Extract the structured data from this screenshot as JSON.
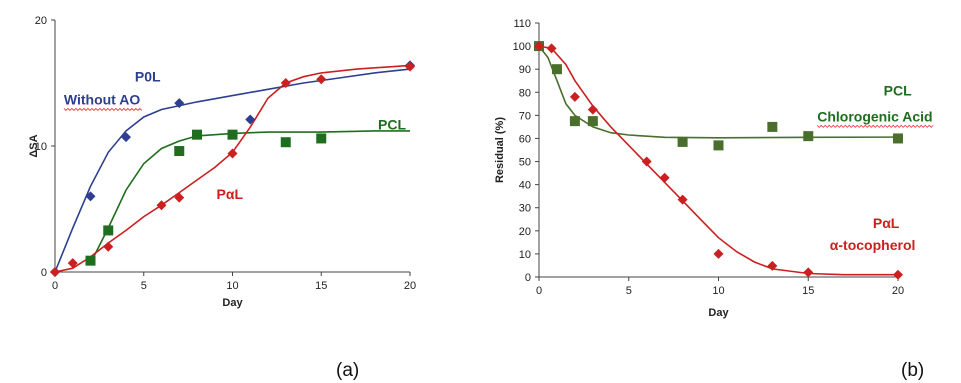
{
  "chart_data": [
    {
      "type": "scatter",
      "panel_label": "(a)",
      "xlabel": "Day",
      "ylabel": "ΔSA",
      "xlim": [
        0,
        20
      ],
      "ylim": [
        0,
        20
      ],
      "xticks": [
        "0",
        "5",
        "10",
        "15",
        "20"
      ],
      "yticks": [
        "0",
        "10",
        "20"
      ],
      "grid": false,
      "series": [
        {
          "name": "P0L",
          "color": "#2e3f8f",
          "marker": "diamond",
          "points": [
            [
              0,
              0
            ],
            [
              2,
              6
            ],
            [
              4,
              10.7
            ],
            [
              7,
              13.4
            ],
            [
              11,
              12.1
            ],
            [
              20,
              16.4
            ]
          ],
          "fit": [
            [
              0,
              0
            ],
            [
              1,
              3.5
            ],
            [
              2,
              6.8
            ],
            [
              3,
              9.5
            ],
            [
              4,
              11.2
            ],
            [
              5,
              12.3
            ],
            [
              6,
              12.9
            ],
            [
              8,
              13.5
            ],
            [
              10,
              14.0
            ],
            [
              12,
              14.5
            ],
            [
              14,
              15.0
            ],
            [
              16,
              15.4
            ],
            [
              18,
              15.8
            ],
            [
              20,
              16.1
            ]
          ]
        },
        {
          "name": "PCL",
          "color": "#1f6e1f",
          "marker": "square",
          "points": [
            [
              2,
              0.9
            ],
            [
              3,
              3.3
            ],
            [
              7,
              9.6
            ],
            [
              8,
              10.9
            ],
            [
              10,
              10.9
            ],
            [
              13,
              10.3
            ],
            [
              15,
              10.6
            ]
          ],
          "fit": [
            [
              2,
              0.7
            ],
            [
              3,
              3.5
            ],
            [
              4,
              6.5
            ],
            [
              5,
              8.6
            ],
            [
              6,
              9.8
            ],
            [
              7,
              10.4
            ],
            [
              8,
              10.8
            ],
            [
              10,
              11.0
            ],
            [
              12,
              11.1
            ],
            [
              15,
              11.1
            ],
            [
              18,
              11.2
            ],
            [
              20,
              11.2
            ]
          ]
        },
        {
          "name": "PαL",
          "color": "#cc2020",
          "marker": "diamond",
          "points": [
            [
              0,
              0
            ],
            [
              1,
              0.7
            ],
            [
              3,
              2.0
            ],
            [
              6,
              5.3
            ],
            [
              7,
              5.9
            ],
            [
              10,
              9.4
            ],
            [
              13,
              15.0
            ],
            [
              15,
              15.3
            ],
            [
              20,
              16.3
            ]
          ],
          "fit": [
            [
              0,
              0
            ],
            [
              1,
              0.3
            ],
            [
              2,
              1.2
            ],
            [
              3,
              2.3
            ],
            [
              4,
              3.3
            ],
            [
              5,
              4.4
            ],
            [
              6,
              5.3
            ],
            [
              7,
              6.3
            ],
            [
              8,
              7.3
            ],
            [
              9,
              8.3
            ],
            [
              10,
              9.5
            ],
            [
              11,
              11.5
            ],
            [
              12,
              13.8
            ],
            [
              13,
              15.0
            ],
            [
              14,
              15.5
            ],
            [
              15,
              15.8
            ],
            [
              17,
              16.1
            ],
            [
              20,
              16.4
            ]
          ]
        }
      ],
      "annotations": [
        {
          "text": "P0L",
          "color": "#2e3f8f",
          "x": 4.5,
          "y": 15.1
        },
        {
          "text": "Without AO",
          "color": "#2e3f8f",
          "x": 0.5,
          "y": 13.3,
          "underline": "wavy"
        },
        {
          "text": "PCL",
          "color": "#1f6e1f",
          "x": 18.2,
          "y": 11.3
        },
        {
          "text": "PαL",
          "color": "#cc2020",
          "x": 9.1,
          "y": 5.8
        }
      ]
    },
    {
      "type": "scatter",
      "panel_label": "(b)",
      "xlabel": "Day",
      "ylabel": "Residual (%)",
      "xlim": [
        0,
        20
      ],
      "ylim": [
        0,
        110
      ],
      "xticks": [
        "0",
        "5",
        "10",
        "15",
        "20"
      ],
      "yticks": [
        "0",
        "10",
        "20",
        "30",
        "40",
        "50",
        "60",
        "70",
        "80",
        "90",
        "100",
        "110"
      ],
      "grid": false,
      "series": [
        {
          "name": "PCL Chlorogenic Acid",
          "color": "#4a6e2c",
          "marker": "square",
          "points": [
            [
              0,
              100
            ],
            [
              1,
              90
            ],
            [
              2,
              67.5
            ],
            [
              3,
              67.5
            ],
            [
              8,
              58.5
            ],
            [
              10,
              57
            ],
            [
              13,
              65
            ],
            [
              15,
              61
            ],
            [
              20,
              60
            ]
          ],
          "fit": [
            [
              0,
              100
            ],
            [
              0.5,
              95
            ],
            [
              1,
              85
            ],
            [
              1.5,
              75
            ],
            [
              2,
              70
            ],
            [
              3,
              65
            ],
            [
              4,
              62.5
            ],
            [
              5,
              61.5
            ],
            [
              7,
              60.5
            ],
            [
              10,
              60.3
            ],
            [
              15,
              60.5
            ],
            [
              20,
              60.6
            ]
          ]
        },
        {
          "name": "PαL α-tocopherol",
          "color": "#cc2020",
          "marker": "diamond",
          "points": [
            [
              0,
              100
            ],
            [
              0.7,
              99
            ],
            [
              2,
              78
            ],
            [
              3,
              72.5
            ],
            [
              6,
              50
            ],
            [
              7,
              43
            ],
            [
              8,
              33.5
            ],
            [
              10,
              10
            ],
            [
              13,
              4.8
            ],
            [
              15,
              2
            ],
            [
              20,
              1
            ]
          ],
          "fit": [
            [
              0,
              100
            ],
            [
              0.7,
              99
            ],
            [
              1.5,
              92
            ],
            [
              2,
              85
            ],
            [
              3,
              74
            ],
            [
              4,
              65
            ],
            [
              5,
              57
            ],
            [
              6,
              49
            ],
            [
              7,
              41
            ],
            [
              8,
              33
            ],
            [
              9,
              25
            ],
            [
              10,
              17
            ],
            [
              11,
              11
            ],
            [
              12,
              6.5
            ],
            [
              13,
              3.5
            ],
            [
              15,
              1.5
            ],
            [
              17,
              1
            ],
            [
              20,
              1
            ]
          ]
        }
      ],
      "annotations": [
        {
          "text": "PCL",
          "color": "#1f6e1f",
          "x": 19.2,
          "y": 78.5
        },
        {
          "text": "Chlorogenic Acid",
          "color": "#1f6e1f",
          "x": 15.5,
          "y": 67.4,
          "underline": "wavy"
        },
        {
          "text": "PαL",
          "color": "#cc2020",
          "x": 18.6,
          "y": 21.3
        },
        {
          "text": "α-tocopherol",
          "color": "#cc2020",
          "x": 16.2,
          "y": 11.8
        }
      ]
    }
  ]
}
